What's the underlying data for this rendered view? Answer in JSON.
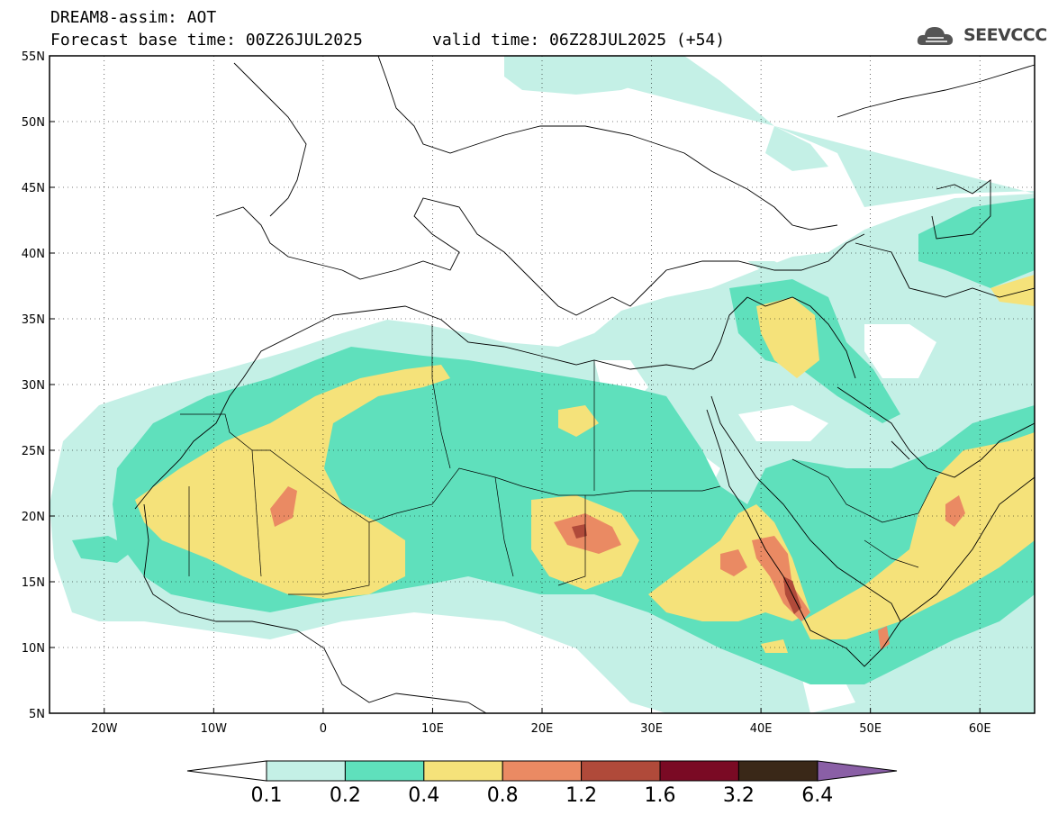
{
  "header": {
    "title_line1": "DREAM8-assim: AOT",
    "title_line2": "Forecast base time: 00Z26JUL2025",
    "valid_time": "valid time: 06Z28JUL2025 (+54)",
    "logo_text": "SEEVCCC"
  },
  "map": {
    "lon_range": [
      -25,
      65
    ],
    "lat_range": [
      5,
      55
    ],
    "lat_ticks": [
      "5N",
      "10N",
      "15N",
      "20N",
      "25N",
      "30N",
      "35N",
      "40N",
      "45N",
      "50N",
      "55N"
    ],
    "lon_ticks": [
      "20W",
      "10W",
      "0",
      "10E",
      "20E",
      "30E",
      "40E",
      "50E",
      "60E"
    ],
    "grid": "dotted"
  },
  "colorbar": {
    "labels": [
      "0.1",
      "0.2",
      "0.4",
      "0.8",
      "1.2",
      "1.6",
      "3.2",
      "6.4"
    ],
    "colors": [
      "#ffffff",
      "#c4f0e6",
      "#5fe0bc",
      "#f5e27a",
      "#ea8a63",
      "#b04a3a",
      "#7a0a24",
      "#3a2818",
      "#8a5fa6"
    ]
  },
  "palette": {
    "aot_0_1": "#c4f0e6",
    "aot_0_2": "#5fe0bc",
    "aot_0_4": "#f5e27a",
    "aot_0_8": "#ea8a63",
    "aot_1_2": "#b04a3a",
    "aot_1_6": "#7a0a24"
  }
}
